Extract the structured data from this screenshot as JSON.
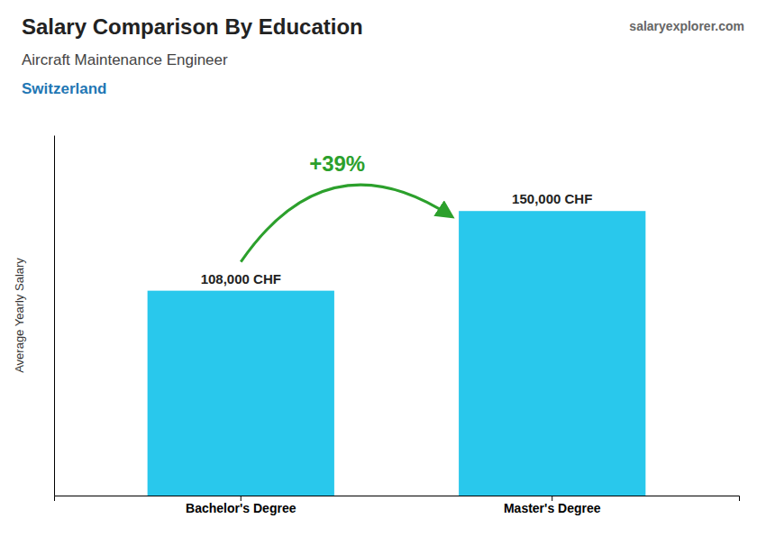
{
  "chart_data": {
    "type": "bar",
    "title": "Salary Comparison By Education",
    "subtitle": "Aircraft Maintenance Engineer",
    "annotations": [
      "Switzerland",
      "+39%",
      "salaryexplorer.com"
    ],
    "ylabel": "Average Yearly Salary",
    "categories": [
      "Bachelor's Degree",
      "Master's Degree"
    ],
    "values": [
      108000,
      150000
    ],
    "value_labels": [
      "108,000 CHF",
      "150,000 CHF"
    ],
    "data_labels": true,
    "color": "#29C8EC",
    "ylim": [
      0,
      190000
    ],
    "tick_labels": "x",
    "grid": false
  }
}
